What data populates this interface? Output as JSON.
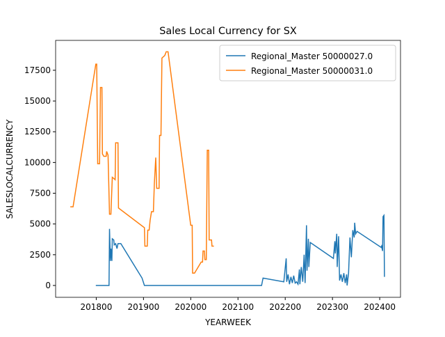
{
  "chart_data": {
    "type": "line",
    "title": "Sales Local Currency for SX",
    "xlabel": "YEARWEEK",
    "ylabel": "SALESLOCALCURRENCY",
    "xlim": [
      201714,
      202444
    ],
    "ylim": [
      -963,
      19930
    ],
    "xticks": [
      201800,
      201900,
      202000,
      202100,
      202200,
      202300,
      202400
    ],
    "yticks": [
      0,
      2500,
      5000,
      7500,
      10000,
      12500,
      15000,
      17500
    ],
    "legend": "upper right",
    "series": [
      {
        "name": "Regional_Master 50000027.0",
        "color": "#1f77b4",
        "x": [
          201799,
          201827,
          201828,
          201830,
          201831,
          201833,
          201834,
          201837,
          201838,
          201841,
          201844,
          201846,
          201852,
          201897,
          201902,
          202150,
          202153,
          202197,
          202202,
          202203,
          202206,
          202209,
          202212,
          202215,
          202218,
          202221,
          202224,
          202227,
          202230,
          202231,
          202234,
          202237,
          202240,
          202242,
          202245,
          202246,
          202249,
          202250,
          202253,
          202302,
          202305,
          202306,
          202309,
          202310,
          202313,
          202315,
          202318,
          202321,
          202324,
          202327,
          202330,
          202331,
          202334,
          202337,
          202340,
          202343,
          202346,
          202347,
          202349,
          202352,
          202403,
          202404,
          202406,
          202407,
          202409,
          202410
        ],
        "values": [
          0,
          0,
          4600,
          2000,
          3000,
          2000,
          3800,
          3700,
          3300,
          3400,
          3000,
          3400,
          3400,
          600,
          0,
          0,
          600,
          300,
          2200,
          300,
          900,
          100,
          700,
          200,
          800,
          200,
          300,
          100,
          1300,
          100,
          1500,
          300,
          2500,
          200,
          4900,
          1200,
          3800,
          1500,
          3500,
          2200,
          3600,
          2600,
          4200,
          1500,
          4000,
          400,
          900,
          300,
          1000,
          200,
          900,
          0,
          1000,
          3900,
          2300,
          4500,
          3900,
          5100,
          4200,
          4400,
          3100,
          3200,
          2800,
          5600,
          5700,
          700
        ]
      },
      {
        "name": "Regional_Master 50000031.0",
        "color": "#ff7f0e",
        "x": [
          201745,
          201751,
          201799,
          201801,
          201803,
          201807,
          201809,
          201812,
          201813,
          201816,
          201821,
          201822,
          201825,
          201828,
          201831,
          201834,
          201837,
          201840,
          201841,
          201846,
          201847,
          201902,
          201903,
          201908,
          201909,
          201912,
          201914,
          201917,
          201921,
          201923,
          201926,
          201928,
          201933,
          201934,
          201937,
          201939,
          201945,
          201948,
          201952,
          202000,
          202003,
          202004,
          202008,
          202022,
          202025,
          202026,
          202029,
          202030,
          202033,
          202035,
          202038,
          202039,
          202044,
          202045,
          202049
        ],
        "values": [
          6400,
          6400,
          18000,
          18000,
          9900,
          9900,
          16100,
          16100,
          10700,
          10500,
          10500,
          10900,
          10600,
          5800,
          5800,
          8800,
          8700,
          8600,
          11600,
          11600,
          6300,
          4700,
          3200,
          3200,
          4500,
          4500,
          5300,
          6000,
          6000,
          8300,
          10400,
          7900,
          7900,
          12200,
          12200,
          18500,
          18700,
          19000,
          19000,
          4900,
          4900,
          1000,
          1000,
          1900,
          1900,
          2800,
          2800,
          2100,
          2100,
          11000,
          11000,
          3700,
          3700,
          3200,
          3200
        ]
      }
    ]
  }
}
